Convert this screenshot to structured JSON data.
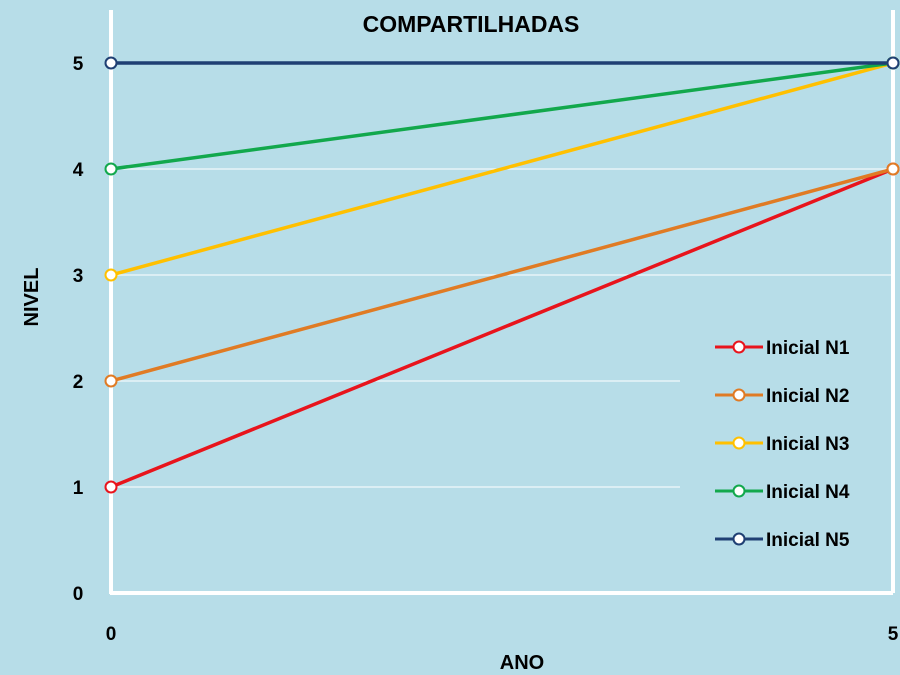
{
  "chart_data": {
    "type": "line",
    "title": "COMPARTILHADAS",
    "xlabel": "ANO",
    "ylabel": "NIVEL",
    "x": [
      0,
      5
    ],
    "x_ticks": [
      "0",
      "5"
    ],
    "y_ticks": [
      "0",
      "1",
      "2",
      "3",
      "4",
      "5"
    ],
    "xlim": [
      0,
      5
    ],
    "ylim": [
      0,
      5
    ],
    "grid": true,
    "legend_position": "right",
    "series": [
      {
        "name": "Inicial N1",
        "values": [
          1,
          4
        ],
        "color": "#e8141c"
      },
      {
        "name": "Inicial N2",
        "values": [
          2,
          4
        ],
        "color": "#e07b24"
      },
      {
        "name": "Inicial N3",
        "values": [
          3,
          5
        ],
        "color": "#ffc000"
      },
      {
        "name": "Inicial N4",
        "values": [
          4,
          5
        ],
        "color": "#12a84c"
      },
      {
        "name": "Inicial N5",
        "values": [
          5,
          5
        ],
        "color": "#1f3f73"
      }
    ],
    "colors": {
      "background": "#b7dde8",
      "axis": "#ffffff",
      "grid": "#ffffff"
    }
  }
}
